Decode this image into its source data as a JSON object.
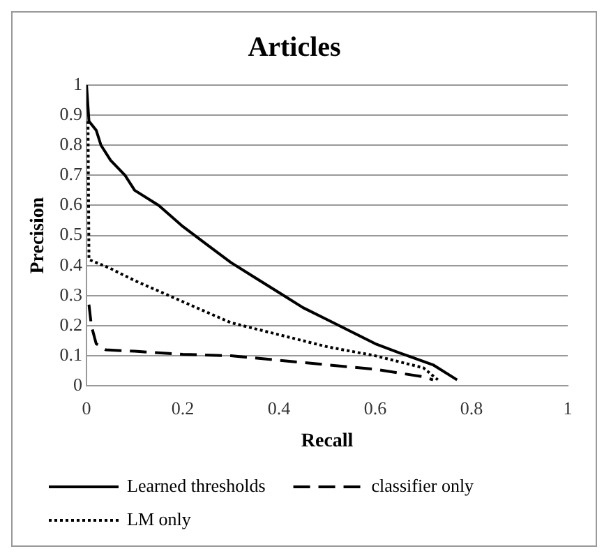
{
  "chart_data": {
    "type": "line",
    "title": "Articles",
    "xlabel": "Recall",
    "ylabel": "Precision",
    "xlim": [
      0,
      1
    ],
    "xticks": [
      0,
      0.2,
      0.4,
      0.6,
      0.8,
      1
    ],
    "ylim": [
      0,
      1
    ],
    "yticks": [
      0,
      0.1,
      0.2,
      0.3,
      0.4,
      0.5,
      0.6,
      0.7,
      0.8,
      0.9,
      1
    ],
    "grid": "y",
    "legend": "bottom",
    "marker": "none",
    "series": [
      {
        "name": "Learned thresholds",
        "color": "#000000",
        "line_style": "solid",
        "x": [
          0,
          0.005,
          0.02,
          0.03,
          0.05,
          0.08,
          0.1,
          0.15,
          0.2,
          0.25,
          0.3,
          0.35,
          0.4,
          0.45,
          0.5,
          0.55,
          0.6,
          0.65,
          0.72,
          0.77
        ],
        "values": [
          1,
          0.88,
          0.85,
          0.8,
          0.75,
          0.7,
          0.65,
          0.6,
          0.53,
          0.47,
          0.41,
          0.36,
          0.31,
          0.26,
          0.22,
          0.18,
          0.14,
          0.11,
          0.07,
          0.02
        ]
      },
      {
        "name": "classifier only",
        "color": "#000000",
        "line_style": "dashed",
        "x": [
          0.005,
          0.01,
          0.02,
          0.04,
          0.1,
          0.2,
          0.3,
          0.4,
          0.5,
          0.6,
          0.7,
          0.72
        ],
        "values": [
          0.27,
          0.2,
          0.14,
          0.12,
          0.115,
          0.105,
          0.1,
          0.085,
          0.07,
          0.055,
          0.03,
          0.02
        ]
      },
      {
        "name": "LM only",
        "color": "#000000",
        "line_style": "dotted",
        "x": [
          0.003,
          0.005,
          0.02,
          0.05,
          0.1,
          0.2,
          0.3,
          0.4,
          0.5,
          0.6,
          0.7,
          0.73
        ],
        "values": [
          0.88,
          0.42,
          0.41,
          0.39,
          0.35,
          0.28,
          0.21,
          0.17,
          0.13,
          0.1,
          0.06,
          0.02
        ]
      }
    ]
  }
}
